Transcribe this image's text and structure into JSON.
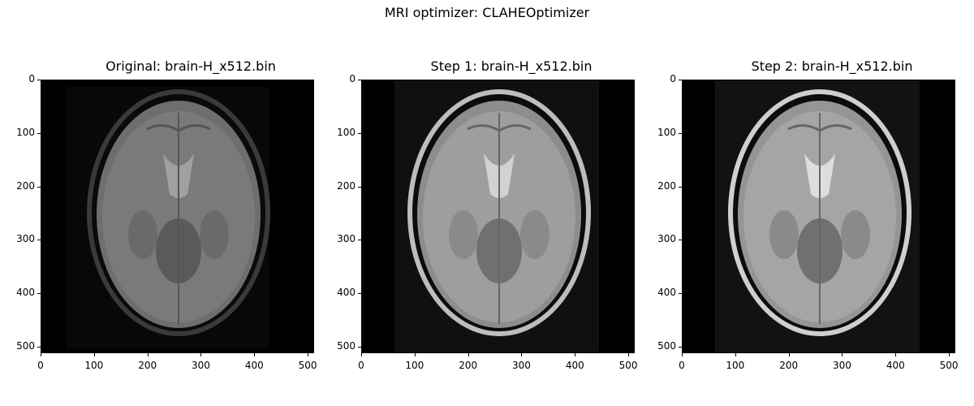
{
  "figure": {
    "suptitle": "MRI optimizer: CLAHEOptimizer",
    "axis_ticks": [
      "0",
      "100",
      "200",
      "300",
      "400",
      "500"
    ],
    "panels": [
      {
        "title": "Original: brain-H_x512.bin",
        "tone": "original"
      },
      {
        "title": "Step 1: brain-H_x512.bin",
        "tone": "step1"
      },
      {
        "title": "Step 2: brain-H_x512.bin",
        "tone": "step2"
      }
    ]
  }
}
